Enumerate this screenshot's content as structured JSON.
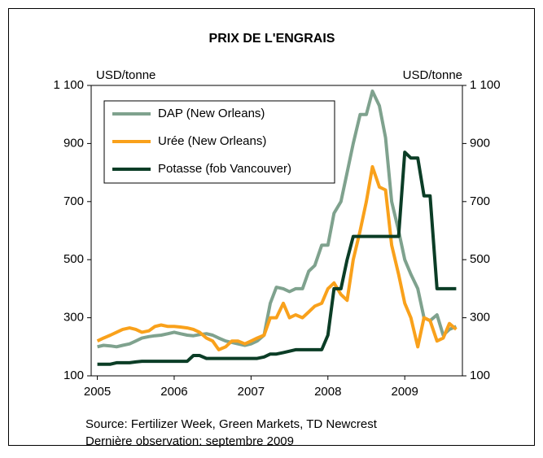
{
  "chart_data": {
    "type": "line",
    "title": "PRIX DE L'ENGRAIS",
    "y_label": "USD/tonne",
    "y2_label": "USD/tonne",
    "source": "Source: Fertilizer Week, Green Markets, TD Newcrest",
    "note": "Dernière observation: septembre 2009",
    "x": [
      2005.0,
      2005.08,
      2005.17,
      2005.25,
      2005.33,
      2005.42,
      2005.5,
      2005.58,
      2005.67,
      2005.75,
      2005.83,
      2005.92,
      2006.0,
      2006.08,
      2006.17,
      2006.25,
      2006.33,
      2006.42,
      2006.5,
      2006.58,
      2006.67,
      2006.75,
      2006.83,
      2006.92,
      2007.0,
      2007.08,
      2007.17,
      2007.25,
      2007.33,
      2007.42,
      2007.5,
      2007.58,
      2007.67,
      2007.75,
      2007.83,
      2007.92,
      2008.0,
      2008.08,
      2008.17,
      2008.25,
      2008.33,
      2008.42,
      2008.5,
      2008.58,
      2008.67,
      2008.75,
      2008.83,
      2008.92,
      2009.0,
      2009.08,
      2009.17,
      2009.25,
      2009.33,
      2009.42,
      2009.5,
      2009.58,
      2009.67
    ],
    "xlim": [
      2004.92,
      2009.75
    ],
    "xticks": [
      2005,
      2006,
      2007,
      2008,
      2009
    ],
    "ylim": [
      100,
      1100
    ],
    "yticks": [
      100,
      300,
      500,
      700,
      900,
      {
        "value": 1100,
        "label": "1 100"
      }
    ],
    "y2lim": [
      100,
      1100
    ],
    "y2ticks": [
      100,
      300,
      500,
      700,
      900,
      {
        "value": 1100,
        "label": "1 100"
      }
    ],
    "legend": "upper left",
    "series": [
      {
        "name": "DAP (New Orleans)",
        "color": "#7fa28e",
        "values": [
          200,
          205,
          203,
          200,
          205,
          210,
          220,
          230,
          235,
          238,
          240,
          245,
          250,
          245,
          240,
          238,
          242,
          245,
          240,
          230,
          220,
          215,
          210,
          205,
          210,
          220,
          240,
          350,
          405,
          400,
          390,
          400,
          400,
          460,
          480,
          550,
          550,
          660,
          700,
          800,
          900,
          1000,
          1000,
          1080,
          1030,
          920,
          700,
          600,
          500,
          450,
          400,
          300,
          290,
          310,
          240,
          260,
          270
        ]
      },
      {
        "name": "Urée (New Orleans)",
        "color": "#f9a11b",
        "values": [
          220,
          230,
          240,
          250,
          260,
          265,
          260,
          250,
          255,
          270,
          275,
          270,
          270,
          268,
          265,
          260,
          250,
          230,
          220,
          190,
          200,
          220,
          220,
          210,
          220,
          230,
          240,
          300,
          300,
          350,
          300,
          310,
          300,
          320,
          340,
          350,
          400,
          420,
          380,
          360,
          500,
          600,
          700,
          820,
          750,
          740,
          550,
          450,
          350,
          300,
          200,
          300,
          290,
          220,
          230,
          280,
          260
        ]
      },
      {
        "name": "Potasse (fob Vancouver)",
        "color": "#0b3d26",
        "values": [
          140,
          140,
          140,
          145,
          145,
          145,
          148,
          150,
          150,
          150,
          150,
          150,
          150,
          150,
          150,
          170,
          170,
          160,
          160,
          160,
          160,
          160,
          160,
          160,
          160,
          160,
          165,
          175,
          175,
          180,
          185,
          190,
          190,
          190,
          190,
          190,
          240,
          400,
          400,
          500,
          580,
          580,
          580,
          580,
          580,
          580,
          580,
          580,
          870,
          850,
          850,
          720,
          720,
          400,
          400,
          400,
          400
        ]
      }
    ]
  }
}
